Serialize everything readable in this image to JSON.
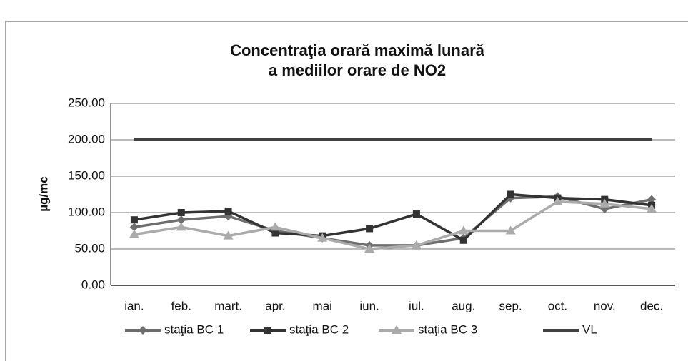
{
  "chart_data": {
    "type": "line",
    "title": [
      "Concentraţia orară maximă lunară",
      "a mediilor orare de NO2"
    ],
    "ylabel": "µg/mc",
    "categories": [
      "ian.",
      "feb.",
      "mart.",
      "apr.",
      "mai",
      "iun.",
      "iul.",
      "aug.",
      "sep.",
      "oct.",
      "nov.",
      "dec."
    ],
    "series": [
      {
        "name": "staţia BC 1",
        "color": "#6e6e6e",
        "marker": "diamond",
        "values": [
          80,
          90,
          95,
          75,
          65,
          55,
          55,
          65,
          120,
          122,
          105,
          118
        ]
      },
      {
        "name": "staţia BC 2",
        "color": "#333333",
        "marker": "square",
        "values": [
          90,
          100,
          102,
          72,
          68,
          78,
          98,
          62,
          125,
          120,
          118,
          110
        ]
      },
      {
        "name": "staţia BC 3",
        "color": "#ababab",
        "marker": "triangle",
        "values": [
          70,
          80,
          68,
          80,
          65,
          50,
          55,
          75,
          75,
          115,
          112,
          105
        ]
      },
      {
        "name": "VL",
        "color": "#404040",
        "marker": "none",
        "values": [
          200,
          200,
          200,
          200,
          200,
          200,
          200,
          200,
          200,
          200,
          200,
          200
        ]
      }
    ],
    "ylim": [
      0,
      250
    ],
    "yticks": [
      {
        "value": 0,
        "label": "0.00"
      },
      {
        "value": 50,
        "label": "50.00"
      },
      {
        "value": 100,
        "label": "100.00"
      },
      {
        "value": 150,
        "label": "150.00"
      },
      {
        "value": 200,
        "label": "200.00"
      },
      {
        "value": 250,
        "label": "250.00"
      }
    ],
    "grid": true,
    "legend": "bottom"
  }
}
